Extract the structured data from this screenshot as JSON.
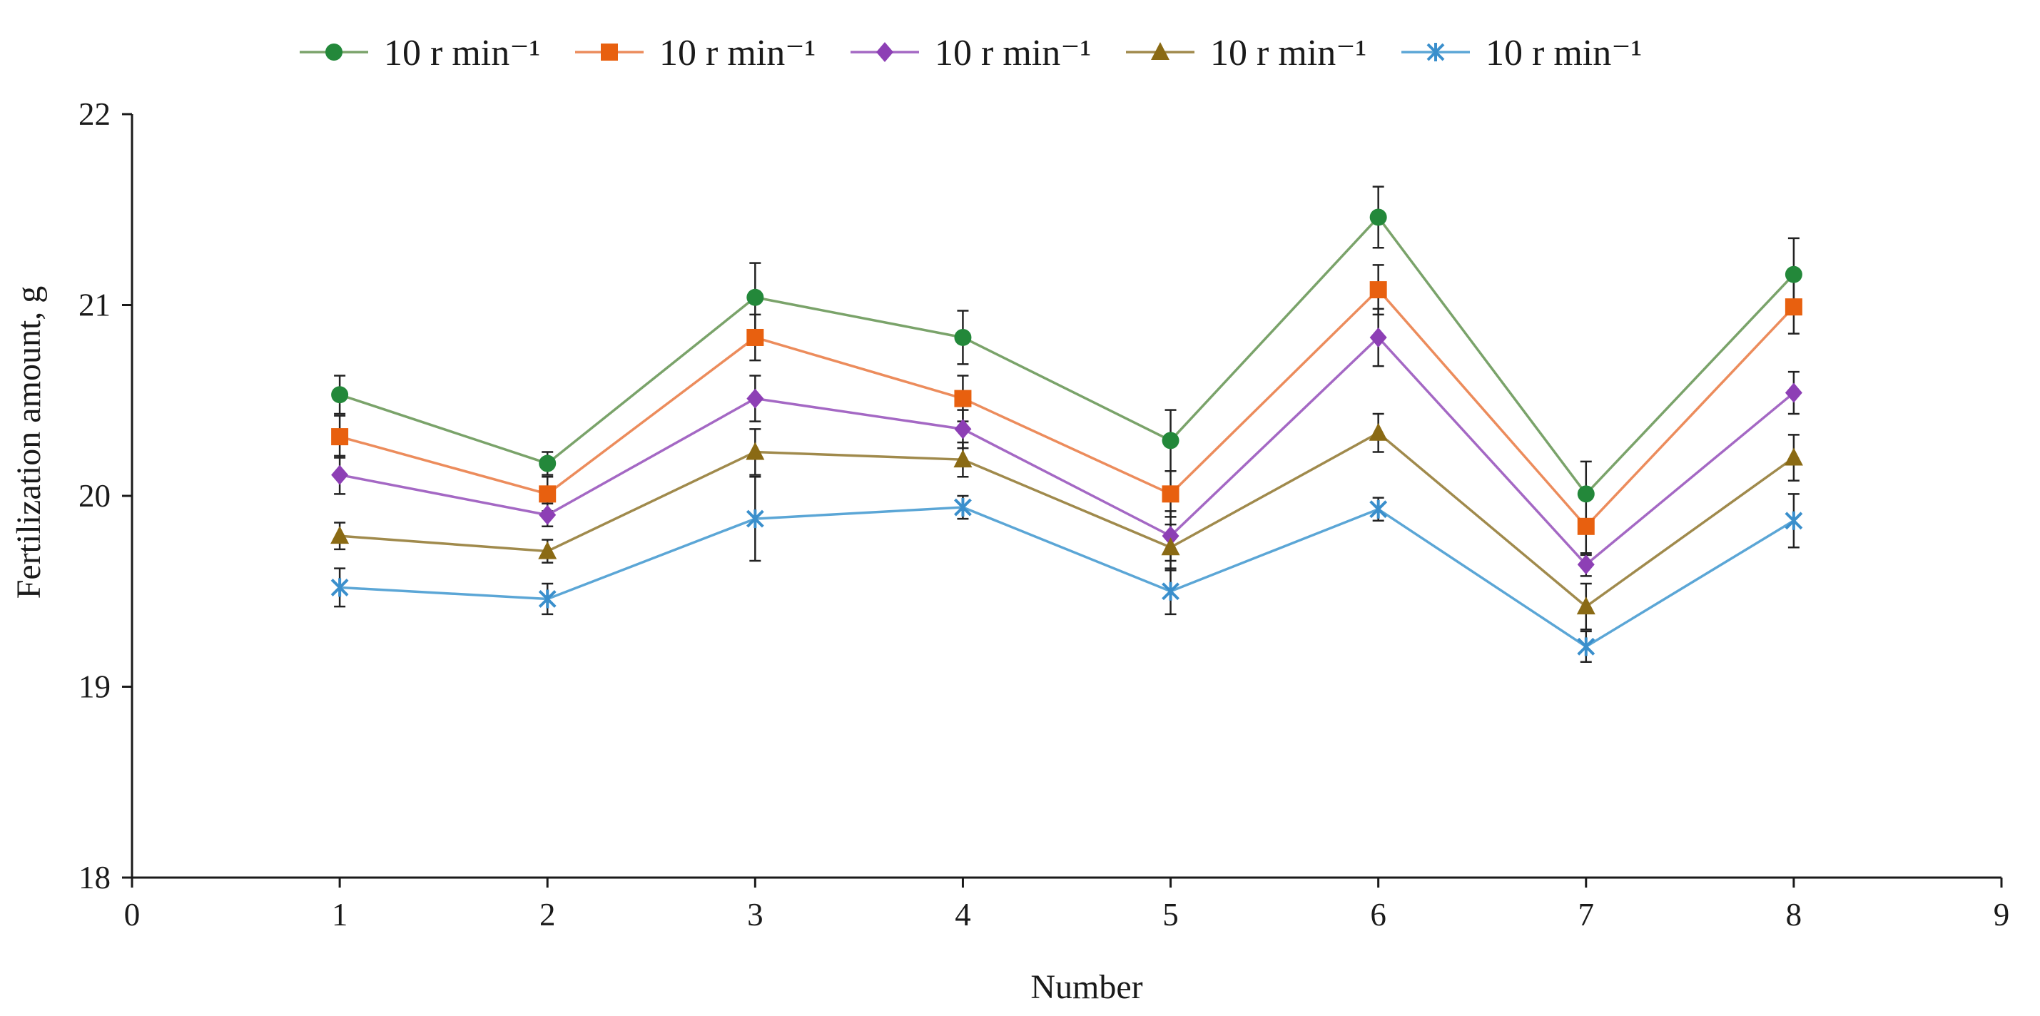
{
  "chart_data": {
    "type": "line",
    "title": "",
    "xlabel": "Number",
    "ylabel": "Fertilization amount, g",
    "xlim": [
      0,
      9
    ],
    "ylim": [
      18,
      22
    ],
    "xticks": [
      0,
      1,
      2,
      3,
      4,
      5,
      6,
      7,
      8,
      9
    ],
    "yticks": [
      18,
      19,
      20,
      21,
      22
    ],
    "xtick_labels": [
      "0",
      "1",
      "2",
      "3",
      "4",
      "5",
      "6",
      "7",
      "8",
      "9"
    ],
    "ytick_labels": [
      "18",
      "19",
      "20",
      "21",
      "22"
    ],
    "grid": false,
    "legend_position": "top",
    "x": [
      1,
      2,
      3,
      4,
      5,
      6,
      7,
      8
    ],
    "series": [
      {
        "name": "10 r min⁻¹",
        "color": "#7aa36a",
        "marker_color": "#23883a",
        "marker": "circle",
        "values": [
          20.53,
          20.17,
          21.04,
          20.83,
          20.29,
          21.46,
          20.01,
          21.16
        ],
        "errors": [
          0.1,
          0.06,
          0.18,
          0.14,
          0.16,
          0.16,
          0.17,
          0.19
        ]
      },
      {
        "name": "10 r min⁻¹",
        "color": "#ec8c5c",
        "marker_color": "#e8600f",
        "marker": "square",
        "values": [
          20.31,
          20.01,
          20.83,
          20.51,
          20.01,
          21.08,
          19.84,
          20.99
        ],
        "errors": [
          0.11,
          0.09,
          0.12,
          0.12,
          0.12,
          0.13,
          0.15,
          0.14
        ]
      },
      {
        "name": "10 r min⁻¹",
        "color": "#a468c4",
        "marker_color": "#8d3fb5",
        "marker": "diamond",
        "values": [
          20.11,
          19.9,
          20.51,
          20.35,
          19.79,
          20.83,
          19.64,
          20.54
        ],
        "errors": [
          0.1,
          0.06,
          0.12,
          0.1,
          0.13,
          0.15,
          0.06,
          0.11
        ]
      },
      {
        "name": "10 r min⁻¹",
        "color": "#a08a4c",
        "marker_color": "#8a6a14",
        "marker": "triangle",
        "values": [
          19.79,
          19.71,
          20.23,
          20.19,
          19.73,
          20.33,
          19.42,
          20.2
        ],
        "errors": [
          0.07,
          0.06,
          0.12,
          0.09,
          0.12,
          0.1,
          0.12,
          0.12
        ]
      },
      {
        "name": "10 r min⁻¹",
        "color": "#5ba6d6",
        "marker_color": "#3a8fcc",
        "marker": "star",
        "values": [
          19.52,
          19.46,
          19.88,
          19.94,
          19.5,
          19.93,
          19.21,
          19.87
        ],
        "errors": [
          0.1,
          0.08,
          0.22,
          0.06,
          0.12,
          0.06,
          0.08,
          0.14
        ]
      }
    ]
  }
}
